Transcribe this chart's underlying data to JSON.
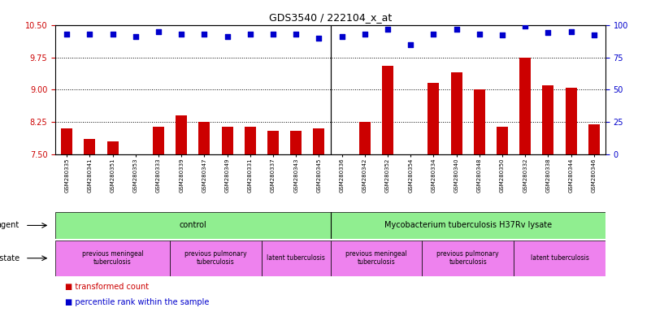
{
  "title": "GDS3540 / 222104_x_at",
  "samples": [
    "GSM280335",
    "GSM280341",
    "GSM280351",
    "GSM280353",
    "GSM280333",
    "GSM280339",
    "GSM280347",
    "GSM280349",
    "GSM280331",
    "GSM280337",
    "GSM280343",
    "GSM280345",
    "GSM280336",
    "GSM280342",
    "GSM280352",
    "GSM280354",
    "GSM280334",
    "GSM280340",
    "GSM280348",
    "GSM280350",
    "GSM280332",
    "GSM280338",
    "GSM280344",
    "GSM280346"
  ],
  "transformed_count": [
    8.1,
    7.85,
    7.8,
    7.5,
    8.15,
    8.4,
    8.25,
    8.15,
    8.15,
    8.05,
    8.05,
    8.1,
    7.5,
    8.25,
    9.55,
    7.5,
    9.15,
    9.4,
    9.0,
    8.15,
    9.75,
    9.1,
    9.05,
    8.2
  ],
  "percentile_rank": [
    93,
    93,
    93,
    91,
    95,
    93,
    93,
    91,
    93,
    93,
    93,
    90,
    91,
    93,
    97,
    85,
    93,
    97,
    93,
    92,
    99,
    94,
    95,
    92
  ],
  "ylim_left": [
    7.5,
    10.5
  ],
  "ylim_right": [
    0,
    100
  ],
  "yticks_left": [
    7.5,
    8.25,
    9.0,
    9.75,
    10.5
  ],
  "yticks_right": [
    0,
    25,
    50,
    75,
    100
  ],
  "bar_color": "#cc0000",
  "scatter_color": "#0000cc",
  "bg_color": "#ffffff",
  "agent_groups": [
    {
      "label": "control",
      "start": 0,
      "end": 12,
      "color": "#90ee90"
    },
    {
      "label": "Mycobacterium tuberculosis H37Rv lysate",
      "start": 12,
      "end": 24,
      "color": "#90ee90"
    }
  ],
  "disease_groups": [
    {
      "label": "previous meningeal\ntuberculosis",
      "start": 0,
      "end": 5,
      "color": "#ee82ee"
    },
    {
      "label": "previous pulmonary\ntuberculosis",
      "start": 5,
      "end": 9,
      "color": "#ee82ee"
    },
    {
      "label": "latent tuberculosis",
      "start": 9,
      "end": 12,
      "color": "#ee82ee"
    },
    {
      "label": "previous meningeal\ntuberculosis",
      "start": 12,
      "end": 16,
      "color": "#ee82ee"
    },
    {
      "label": "previous pulmonary\ntuberculosis",
      "start": 16,
      "end": 20,
      "color": "#ee82ee"
    },
    {
      "label": "latent tuberculosis",
      "start": 20,
      "end": 24,
      "color": "#ee82ee"
    }
  ]
}
